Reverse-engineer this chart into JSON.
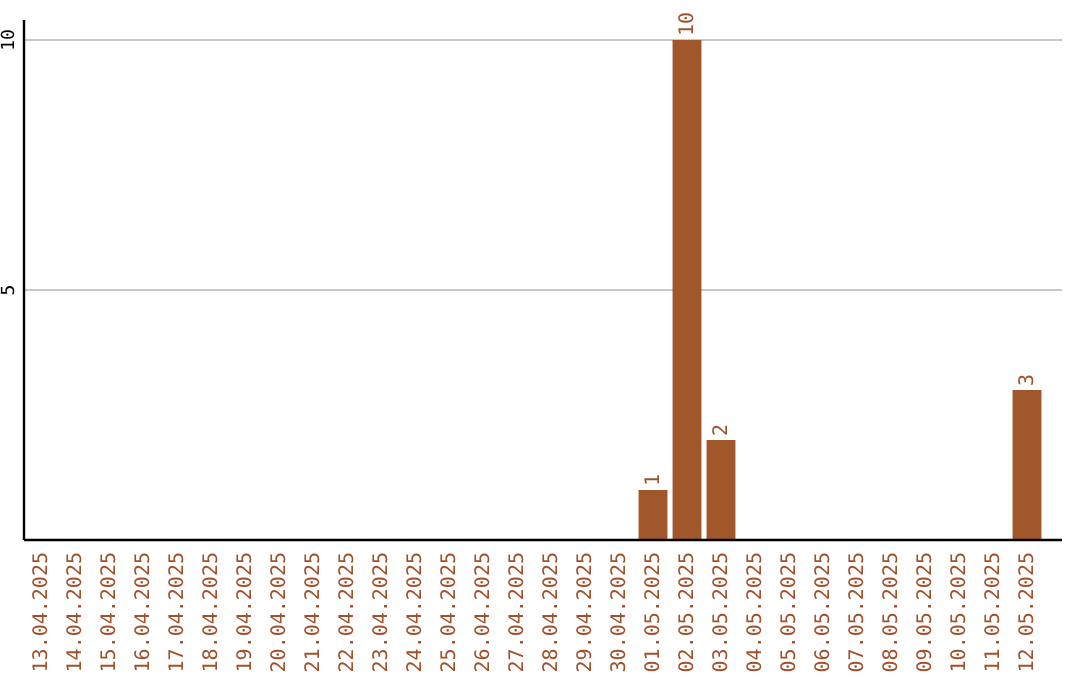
{
  "chart_data": {
    "type": "bar",
    "categories": [
      "13.04.2025",
      "14.04.2025",
      "15.04.2025",
      "16.04.2025",
      "17.04.2025",
      "18.04.2025",
      "19.04.2025",
      "20.04.2025",
      "21.04.2025",
      "22.04.2025",
      "23.04.2025",
      "24.04.2025",
      "25.04.2025",
      "26.04.2025",
      "27.04.2025",
      "28.04.2025",
      "29.04.2025",
      "30.04.2025",
      "01.05.2025",
      "02.05.2025",
      "03.05.2025",
      "04.05.2025",
      "05.05.2025",
      "06.05.2025",
      "07.05.2025",
      "08.05.2025",
      "09.05.2025",
      "10.05.2025",
      "11.05.2025",
      "12.05.2025"
    ],
    "values": [
      0,
      0,
      0,
      0,
      0,
      0,
      0,
      0,
      0,
      0,
      0,
      0,
      0,
      0,
      0,
      0,
      0,
      0,
      1,
      10,
      2,
      0,
      0,
      0,
      0,
      0,
      0,
      0,
      0,
      3
    ],
    "value_labels": [
      null,
      null,
      null,
      null,
      null,
      null,
      null,
      null,
      null,
      null,
      null,
      null,
      null,
      null,
      null,
      null,
      null,
      null,
      "1",
      "10",
      "2",
      null,
      null,
      null,
      null,
      null,
      null,
      null,
      null,
      "3"
    ],
    "color": "#a0572a",
    "ylim": [
      0,
      10.4
    ],
    "yticks": [
      5,
      10
    ],
    "grid": "y"
  }
}
